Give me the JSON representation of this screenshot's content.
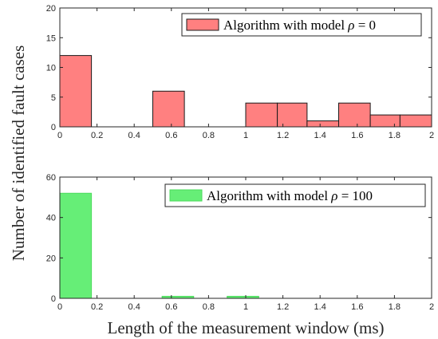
{
  "ylabel": "Number of identified fault cases",
  "xlabel": "Length of the measurement window (ms)",
  "chart_data": [
    {
      "type": "bar",
      "legend": {
        "prefix": "Algorithm with model ",
        "symbol": "ρ",
        "suffix": " = 0",
        "placement": "top-right"
      },
      "color": "#ff8080",
      "edge_color": "#1a1a1a",
      "xlim": [
        0,
        2
      ],
      "ylim": [
        0,
        20
      ],
      "xticks": [
        "0",
        "0.2",
        "0.4",
        "0.6",
        "0.8",
        "1",
        "1.2",
        "1.4",
        "1.6",
        "1.8",
        "2"
      ],
      "yticks": [
        "0",
        "5",
        "10",
        "15",
        "20"
      ],
      "bins": [
        {
          "x0": 0.0,
          "x1": 0.17,
          "value": 12
        },
        {
          "x0": 0.5,
          "x1": 0.67,
          "value": 6
        },
        {
          "x0": 1.0,
          "x1": 1.17,
          "value": 4
        },
        {
          "x0": 1.17,
          "x1": 1.33,
          "value": 4
        },
        {
          "x0": 1.33,
          "x1": 1.5,
          "value": 1
        },
        {
          "x0": 1.5,
          "x1": 1.67,
          "value": 4
        },
        {
          "x0": 1.67,
          "x1": 1.83,
          "value": 2
        },
        {
          "x0": 1.83,
          "x1": 2.0,
          "value": 2
        }
      ]
    },
    {
      "type": "bar",
      "legend": {
        "prefix": "Algorithm with model ",
        "symbol": "ρ",
        "suffix": " = 100",
        "placement": "top-right"
      },
      "color": "#66ee77",
      "edge_color": "#4ddb5e",
      "xlim": [
        0,
        2
      ],
      "ylim": [
        0,
        60
      ],
      "xticks": [
        "0",
        "0.2",
        "0.4",
        "0.6",
        "0.8",
        "1",
        "1.2",
        "1.4",
        "1.6",
        "1.8",
        "2"
      ],
      "yticks": [
        "0",
        "20",
        "40",
        "60"
      ],
      "bins": [
        {
          "x0": 0.0,
          "x1": 0.17,
          "value": 52
        },
        {
          "x0": 0.55,
          "x1": 0.72,
          "value": 1
        },
        {
          "x0": 0.9,
          "x1": 1.07,
          "value": 1
        }
      ]
    }
  ]
}
